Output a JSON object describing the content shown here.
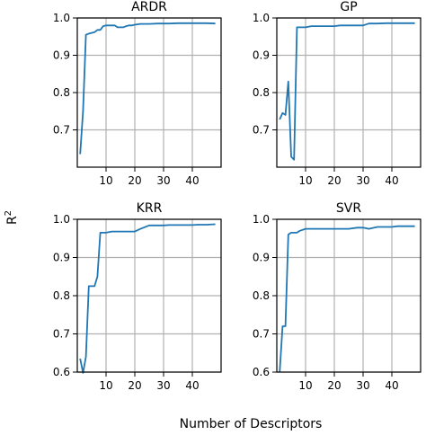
{
  "figure": {
    "ylabel_base": "R",
    "ylabel_sup": "2",
    "xlabel": "Number of Descriptors"
  },
  "chart_data": [
    {
      "type": "line",
      "title": "ARDR",
      "xlim": [
        0,
        50
      ],
      "ylim": [
        0.6,
        1.0
      ],
      "yticks": [
        "0.7",
        "0.8",
        "0.9",
        "1.0"
      ],
      "xticks": [
        "10",
        "20",
        "30",
        "40"
      ],
      "grid": true,
      "color": "#1f77b4",
      "series": [
        {
          "x": [
            1,
            2,
            3,
            4,
            5,
            6,
            7,
            8,
            9,
            10,
            11,
            12,
            13,
            14,
            15,
            16,
            17,
            18,
            19,
            20,
            22,
            25,
            28,
            30,
            32,
            35,
            38,
            40,
            42,
            45,
            48
          ],
          "y": [
            0.635,
            0.75,
            0.955,
            0.958,
            0.96,
            0.962,
            0.968,
            0.968,
            0.978,
            0.98,
            0.98,
            0.98,
            0.98,
            0.975,
            0.975,
            0.975,
            0.978,
            0.98,
            0.98,
            0.982,
            0.984,
            0.984,
            0.985,
            0.985,
            0.985,
            0.986,
            0.986,
            0.986,
            0.986,
            0.986,
            0.985
          ]
        }
      ]
    },
    {
      "type": "line",
      "title": "GP",
      "xlim": [
        0,
        50
      ],
      "ylim": [
        0.6,
        1.0
      ],
      "yticks": [
        "0.7",
        "0.8",
        "0.9",
        "1.0"
      ],
      "xticks": [
        "10",
        "20",
        "30",
        "40"
      ],
      "grid": true,
      "color": "#1f77b4",
      "series": [
        {
          "x": [
            1,
            2,
            3,
            4,
            5,
            6,
            7,
            8,
            9,
            10,
            12,
            15,
            18,
            20,
            22,
            25,
            28,
            30,
            32,
            35,
            38,
            40,
            42,
            45,
            48
          ],
          "y": [
            0.728,
            0.745,
            0.74,
            0.83,
            0.628,
            0.62,
            0.975,
            0.975,
            0.975,
            0.975,
            0.978,
            0.978,
            0.978,
            0.978,
            0.98,
            0.98,
            0.98,
            0.98,
            0.985,
            0.985,
            0.986,
            0.986,
            0.986,
            0.986,
            0.986
          ]
        }
      ]
    },
    {
      "type": "line",
      "title": "KRR",
      "xlim": [
        0,
        50
      ],
      "ylim": [
        0.6,
        1.0
      ],
      "yticks": [
        "0.6",
        "0.7",
        "0.8",
        "0.9",
        "1.0"
      ],
      "xticks": [
        "10",
        "20",
        "30",
        "40"
      ],
      "grid": true,
      "color": "#1f77b4",
      "series": [
        {
          "x": [
            1,
            2,
            3,
            4,
            5,
            6,
            7,
            8,
            9,
            10,
            12,
            15,
            18,
            20,
            22,
            25,
            28,
            30,
            32,
            35,
            38,
            40,
            42,
            45,
            48
          ],
          "y": [
            0.635,
            0.598,
            0.64,
            0.825,
            0.825,
            0.825,
            0.85,
            0.965,
            0.965,
            0.965,
            0.968,
            0.968,
            0.968,
            0.968,
            0.975,
            0.984,
            0.984,
            0.984,
            0.985,
            0.985,
            0.985,
            0.985,
            0.986,
            0.986,
            0.987
          ]
        }
      ]
    },
    {
      "type": "line",
      "title": "SVR",
      "xlim": [
        0,
        50
      ],
      "ylim": [
        0.6,
        1.0
      ],
      "yticks": [
        "0.6",
        "0.7",
        "0.8",
        "0.9",
        "1.0"
      ],
      "xticks": [
        "10",
        "20",
        "30",
        "40"
      ],
      "grid": true,
      "color": "#1f77b4",
      "series": [
        {
          "x": [
            1,
            2,
            3,
            4,
            5,
            6,
            7,
            8,
            10,
            12,
            15,
            18,
            20,
            22,
            25,
            28,
            30,
            32,
            35,
            38,
            40,
            42,
            45,
            48
          ],
          "y": [
            0.6,
            0.72,
            0.72,
            0.96,
            0.965,
            0.965,
            0.965,
            0.97,
            0.975,
            0.975,
            0.975,
            0.975,
            0.975,
            0.975,
            0.975,
            0.978,
            0.978,
            0.975,
            0.98,
            0.98,
            0.98,
            0.982,
            0.982,
            0.982
          ]
        }
      ]
    }
  ]
}
